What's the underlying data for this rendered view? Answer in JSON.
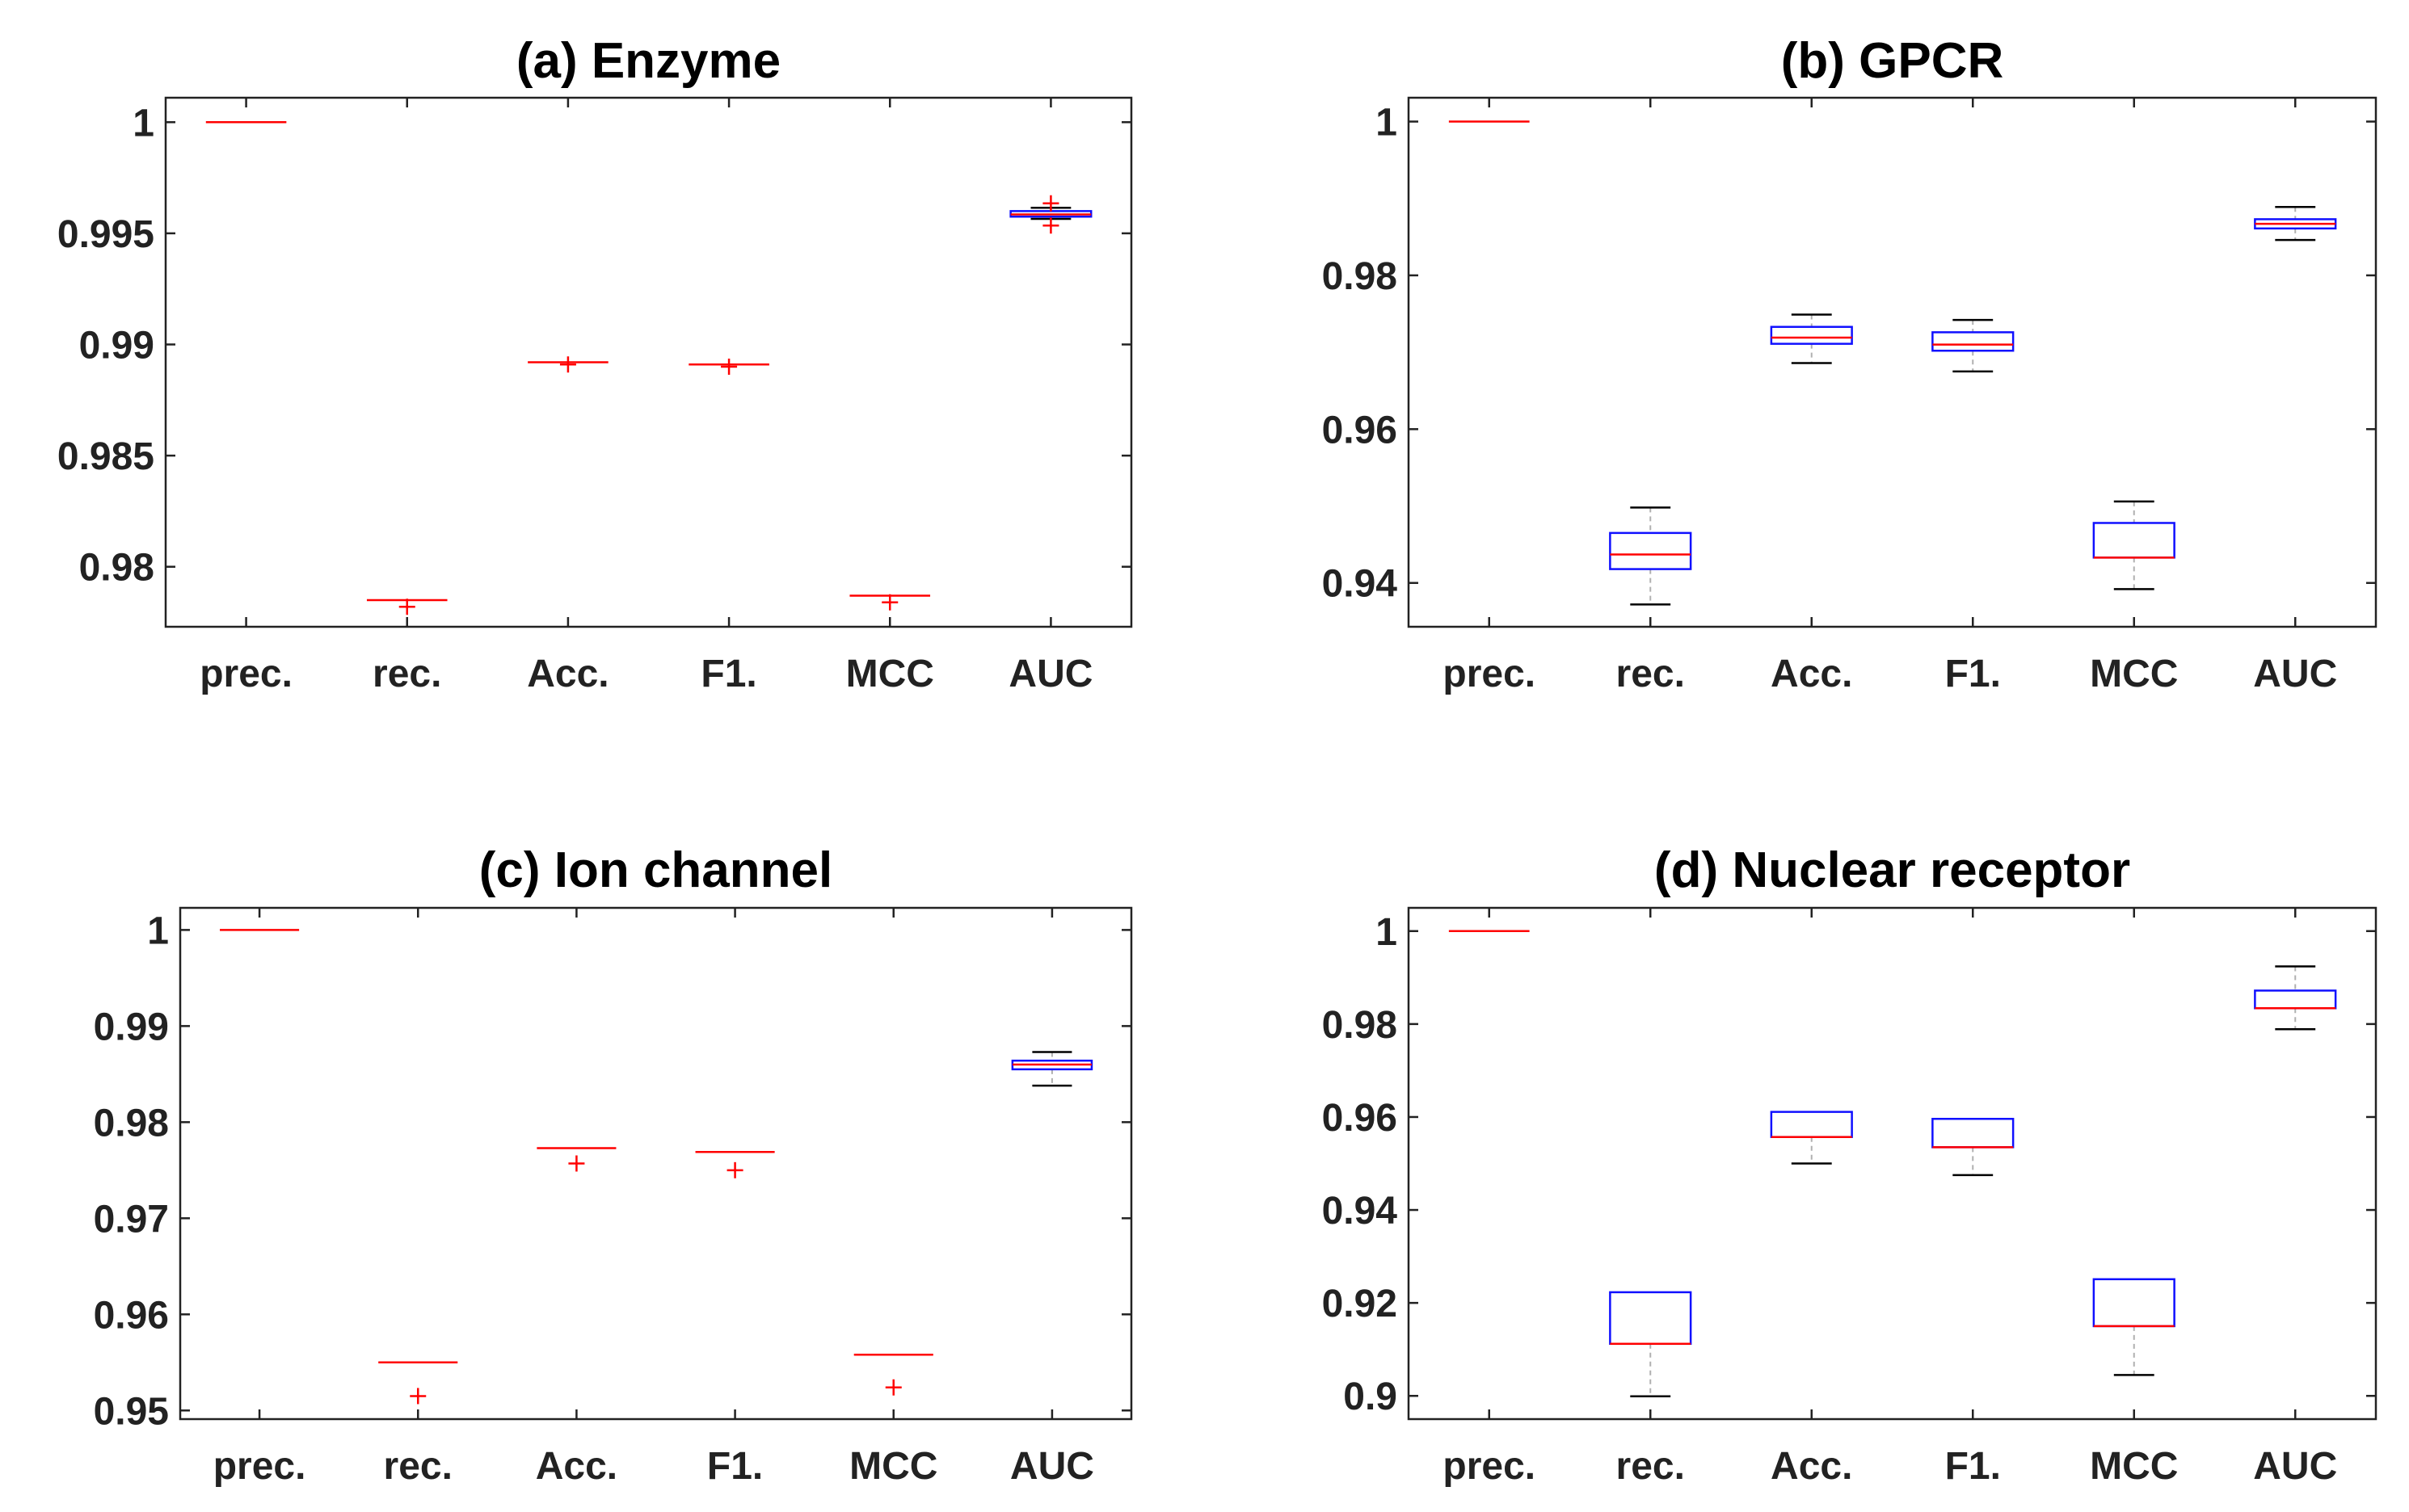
{
  "colors": {
    "box": "#1010ff",
    "median": "#ff0000",
    "whisker_cap": "#000000",
    "whisker_line": "#b0b0b0",
    "outlier": "#ff0000"
  },
  "chart_data": [
    {
      "type": "box",
      "title": "(a) Enzyme",
      "categories": [
        "prec.",
        "rec.",
        "Acc.",
        "F1.",
        "MCC",
        "AUC"
      ],
      "ylim": [
        0.9773,
        1.0011
      ],
      "yticks": [
        0.98,
        0.985,
        0.99,
        0.995,
        1
      ],
      "ytick_labels": [
        "0.98",
        "0.985",
        "0.99",
        "0.995",
        "1"
      ],
      "boxes": [
        {
          "q1": 1.0,
          "median": 1.0,
          "q3": 1.0,
          "whisker_low": 1.0,
          "whisker_high": 1.0,
          "outliers": []
        },
        {
          "q1": 0.9785,
          "median": 0.9785,
          "q3": 0.9785,
          "whisker_low": 0.9785,
          "whisker_high": 0.9785,
          "outliers": [
            0.9782
          ]
        },
        {
          "q1": 0.9892,
          "median": 0.9892,
          "q3": 0.9892,
          "whisker_low": 0.9892,
          "whisker_high": 0.9892,
          "outliers": [
            0.9891
          ]
        },
        {
          "q1": 0.9891,
          "median": 0.9891,
          "q3": 0.9891,
          "whisker_low": 0.9891,
          "whisker_high": 0.9891,
          "outliers": [
            0.989
          ]
        },
        {
          "q1": 0.9787,
          "median": 0.9787,
          "q3": 0.9787,
          "whisker_low": 0.9787,
          "whisker_high": 0.9787,
          "outliers": [
            0.9784
          ]
        },
        {
          "q1": 0.99575,
          "median": 0.99585,
          "q3": 0.996,
          "whisker_low": 0.99565,
          "whisker_high": 0.99615,
          "outliers": [
            0.99635,
            0.99535
          ]
        }
      ]
    },
    {
      "type": "box",
      "title": "(b) GPCR",
      "categories": [
        "prec.",
        "rec.",
        "Acc.",
        "F1.",
        "MCC",
        "AUC"
      ],
      "ylim": [
        0.9343,
        1.0031
      ],
      "yticks": [
        0.94,
        0.96,
        0.98,
        1
      ],
      "ytick_labels": [
        "0.94",
        "0.96",
        "0.98",
        "1"
      ],
      "boxes": [
        {
          "q1": 1.0,
          "median": 1.0,
          "q3": 1.0,
          "whisker_low": 1.0,
          "whisker_high": 1.0,
          "outliers": []
        },
        {
          "q1": 0.9418,
          "median": 0.9437,
          "q3": 0.9465,
          "whisker_low": 0.9372,
          "whisker_high": 0.9498,
          "outliers": []
        },
        {
          "q1": 0.9711,
          "median": 0.9719,
          "q3": 0.9733,
          "whisker_low": 0.9686,
          "whisker_high": 0.9749,
          "outliers": []
        },
        {
          "q1": 0.9702,
          "median": 0.971,
          "q3": 0.9726,
          "whisker_low": 0.9675,
          "whisker_high": 0.9742,
          "outliers": []
        },
        {
          "q1": 0.9433,
          "median": 0.9433,
          "q3": 0.9478,
          "whisker_low": 0.9392,
          "whisker_high": 0.9506,
          "outliers": []
        },
        {
          "q1": 0.9861,
          "median": 0.9867,
          "q3": 0.9873,
          "whisker_low": 0.9846,
          "whisker_high": 0.9889,
          "outliers": []
        }
      ]
    },
    {
      "type": "box",
      "title": "(c) Ion channel",
      "categories": [
        "prec.",
        "rec.",
        "Acc.",
        "F1.",
        "MCC",
        "AUC"
      ],
      "ylim": [
        0.9491,
        1.0023
      ],
      "yticks": [
        0.95,
        0.96,
        0.97,
        0.98,
        0.99,
        1
      ],
      "ytick_labels": [
        "0.95",
        "0.96",
        "0.97",
        "0.98",
        "0.99",
        "1"
      ],
      "boxes": [
        {
          "q1": 1.0,
          "median": 1.0,
          "q3": 1.0,
          "whisker_low": 1.0,
          "whisker_high": 1.0,
          "outliers": []
        },
        {
          "q1": 0.955,
          "median": 0.955,
          "q3": 0.955,
          "whisker_low": 0.955,
          "whisker_high": 0.955,
          "outliers": [
            0.9515
          ]
        },
        {
          "q1": 0.9773,
          "median": 0.9773,
          "q3": 0.9773,
          "whisker_low": 0.9773,
          "whisker_high": 0.9773,
          "outliers": [
            0.9757
          ]
        },
        {
          "q1": 0.9769,
          "median": 0.9769,
          "q3": 0.9769,
          "whisker_low": 0.9769,
          "whisker_high": 0.9769,
          "outliers": [
            0.975
          ]
        },
        {
          "q1": 0.9558,
          "median": 0.9558,
          "q3": 0.9558,
          "whisker_low": 0.9558,
          "whisker_high": 0.9558,
          "outliers": [
            0.9524
          ]
        },
        {
          "q1": 0.9855,
          "median": 0.986,
          "q3": 0.9864,
          "whisker_low": 0.9838,
          "whisker_high": 0.9873,
          "outliers": []
        }
      ]
    },
    {
      "type": "box",
      "title": "(d) Nuclear receptor",
      "categories": [
        "prec.",
        "rec.",
        "Acc.",
        "F1.",
        "MCC",
        "AUC"
      ],
      "ylim": [
        0.895,
        1.005
      ],
      "yticks": [
        0.9,
        0.92,
        0.94,
        0.96,
        0.98,
        1
      ],
      "ytick_labels": [
        "0.9",
        "0.92",
        "0.94",
        "0.96",
        "0.98",
        "1"
      ],
      "boxes": [
        {
          "q1": 1.0,
          "median": 1.0,
          "q3": 1.0,
          "whisker_low": 1.0,
          "whisker_high": 1.0,
          "outliers": []
        },
        {
          "q1": 0.9112,
          "median": 0.9112,
          "q3": 0.9223,
          "whisker_low": 0.8999,
          "whisker_high": 0.9223,
          "outliers": []
        },
        {
          "q1": 0.9557,
          "median": 0.9557,
          "q3": 0.9611,
          "whisker_low": 0.95,
          "whisker_high": 0.9611,
          "outliers": []
        },
        {
          "q1": 0.9535,
          "median": 0.9535,
          "q3": 0.9596,
          "whisker_low": 0.9475,
          "whisker_high": 0.9596,
          "outliers": []
        },
        {
          "q1": 0.915,
          "median": 0.915,
          "q3": 0.9251,
          "whisker_low": 0.9045,
          "whisker_high": 0.9251,
          "outliers": []
        },
        {
          "q1": 0.9834,
          "median": 0.9834,
          "q3": 0.9872,
          "whisker_low": 0.9789,
          "whisker_high": 0.9924,
          "outliers": []
        }
      ]
    }
  ]
}
